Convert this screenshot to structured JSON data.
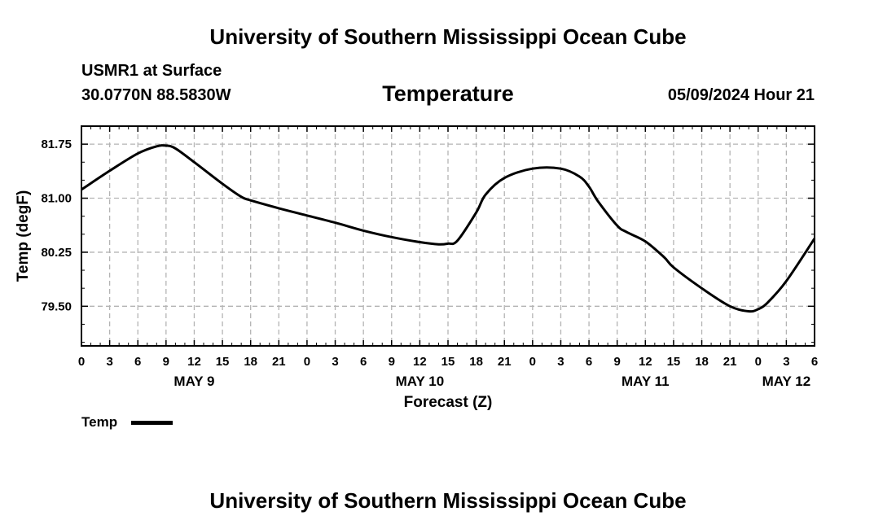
{
  "header": {
    "top_title": "University of Southern Mississippi Ocean Cube",
    "station": "USMR1 at Surface",
    "latlon": "30.0770N  88.5830W",
    "datetime": "05/09/2024 Hour 21"
  },
  "footer": {
    "bottom_title": "University of Southern Mississippi Ocean Cube"
  },
  "legend": {
    "label": "Temp",
    "color": "#000000"
  },
  "colors": {
    "grid": "#b4b4b4",
    "line": "#000000",
    "background": "#ffffff"
  },
  "chart_data": {
    "type": "line",
    "title": "Temperature",
    "xlabel": "Forecast (Z)",
    "ylabel": "Temp (degF)",
    "x_unit": "hours since 05/09 00Z",
    "xlim": [
      0,
      78
    ],
    "ylim": [
      78.95,
      82.0
    ],
    "y_ticks": [
      79.5,
      80.25,
      81.0,
      81.75
    ],
    "y_tick_labels": [
      "79.50",
      "80.25",
      "81.00",
      "81.75"
    ],
    "x_ticks": [
      0,
      3,
      6,
      9,
      12,
      15,
      18,
      21,
      24,
      27,
      30,
      33,
      36,
      39,
      42,
      45,
      48,
      51,
      54,
      57,
      60,
      63,
      66,
      69,
      72,
      75,
      78
    ],
    "x_tick_labels": [
      "0",
      "3",
      "6",
      "9",
      "12",
      "15",
      "18",
      "21",
      "0",
      "3",
      "6",
      "9",
      "12",
      "15",
      "18",
      "21",
      "0",
      "3",
      "6",
      "9",
      "12",
      "15",
      "18",
      "21",
      "0",
      "3",
      "6"
    ],
    "date_labels": [
      {
        "x": 12,
        "label": "MAY 9"
      },
      {
        "x": 36,
        "label": "MAY 10"
      },
      {
        "x": 60,
        "label": "MAY 11"
      },
      {
        "x": 75,
        "label": "MAY 12"
      }
    ],
    "grid": true,
    "series": [
      {
        "name": "Temp",
        "x": [
          0,
          3,
          6,
          8,
          9,
          10,
          12,
          15,
          17,
          18,
          21,
          24,
          27,
          30,
          33,
          36,
          38,
          39,
          40,
          42,
          43,
          45,
          48,
          51,
          53,
          54,
          55,
          57,
          58,
          60,
          62,
          63,
          66,
          69,
          71,
          72,
          73,
          75,
          78
        ],
        "y": [
          81.12,
          81.38,
          81.62,
          81.72,
          81.73,
          81.69,
          81.5,
          81.2,
          81.02,
          80.97,
          80.86,
          80.76,
          80.66,
          80.55,
          80.46,
          80.39,
          80.36,
          80.37,
          80.41,
          80.8,
          81.05,
          81.28,
          81.41,
          81.41,
          81.3,
          81.16,
          80.95,
          80.62,
          80.53,
          80.4,
          80.18,
          80.04,
          79.75,
          79.5,
          79.43,
          79.46,
          79.55,
          79.85,
          80.44
        ]
      }
    ]
  }
}
